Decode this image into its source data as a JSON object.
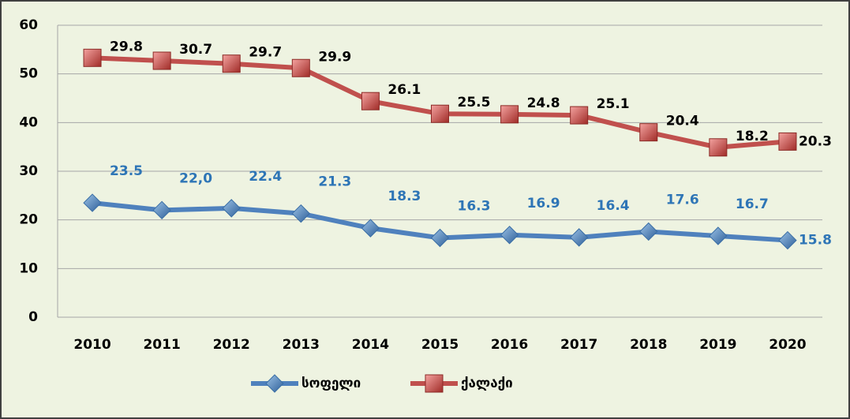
{
  "chart_data": {
    "type": "line",
    "stacked": true,
    "categories": [
      "2010",
      "2011",
      "2012",
      "2013",
      "2014",
      "2015",
      "2016",
      "2017",
      "2018",
      "2019",
      "2020"
    ],
    "series": [
      {
        "name": "სოფელი",
        "color": "#4f81bd",
        "label_color": "#2e75b6",
        "values": [
          23.5,
          22,
          22.4,
          21.3,
          18.3,
          16.3,
          16.9,
          16.4,
          17.6,
          16.7,
          15.8
        ],
        "value_labels": [
          "23.5",
          "22,0",
          "22.4",
          "21.3",
          "18.3",
          "16.3",
          "16.9",
          "16.4",
          "17.6",
          "16.7",
          "15.8"
        ]
      },
      {
        "name": "ქალაქი",
        "color": "#c0504d",
        "label_color": "#000000",
        "values": [
          29.8,
          30.7,
          29.7,
          29.9,
          26.1,
          25.5,
          24.8,
          25.1,
          20.4,
          18.2,
          20.3
        ]
      }
    ],
    "ylim": [
      0,
      60
    ],
    "yticks": [
      0,
      10,
      20,
      30,
      40,
      50,
      60
    ],
    "grid": true,
    "legend": "bottom"
  }
}
